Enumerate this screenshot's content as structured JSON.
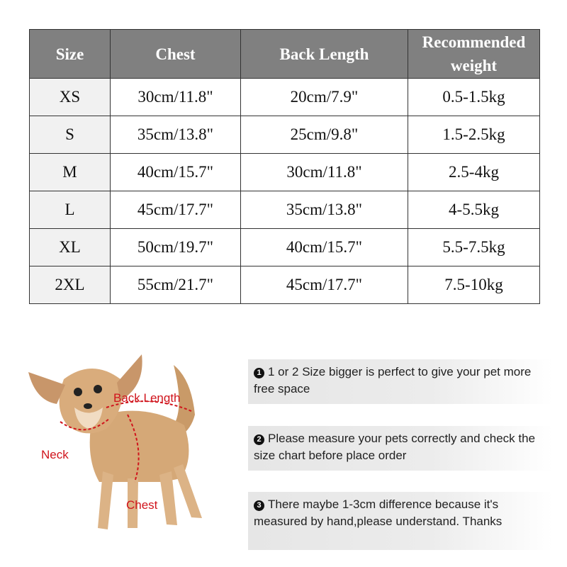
{
  "table": {
    "headers": [
      "Size",
      "Chest",
      "Back Length",
      "Recommended weight"
    ],
    "rows": [
      [
        "XS",
        "30cm/11.8\"",
        "20cm/7.9\"",
        "0.5-1.5kg"
      ],
      [
        "S",
        "35cm/13.8\"",
        "25cm/9.8\"",
        "1.5-2.5kg"
      ],
      [
        "M",
        "40cm/15.7\"",
        "30cm/11.8\"",
        "2.5-4kg"
      ],
      [
        "L",
        "45cm/17.7\"",
        "35cm/13.8\"",
        "4-5.5kg"
      ],
      [
        "XL",
        "50cm/19.7\"",
        "40cm/15.7\"",
        "5.5-7.5kg"
      ],
      [
        "2XL",
        "55cm/21.7\"",
        "45cm/17.7\"",
        "7.5-10kg"
      ]
    ]
  },
  "diagram": {
    "labels": {
      "back": "Back Length",
      "neck": "Neck",
      "chest": "Chest"
    },
    "label_color": "#d0141c"
  },
  "notes": [
    {
      "num": "1",
      "text": "1 or 2 Size bigger is perfect to give your pet more free space"
    },
    {
      "num": "2",
      "text": "Please measure your pets correctly and check the size chart before place order"
    },
    {
      "num": "3",
      "text": "There maybe 1-3cm difference because it's measured by hand,please understand. Thanks"
    }
  ]
}
